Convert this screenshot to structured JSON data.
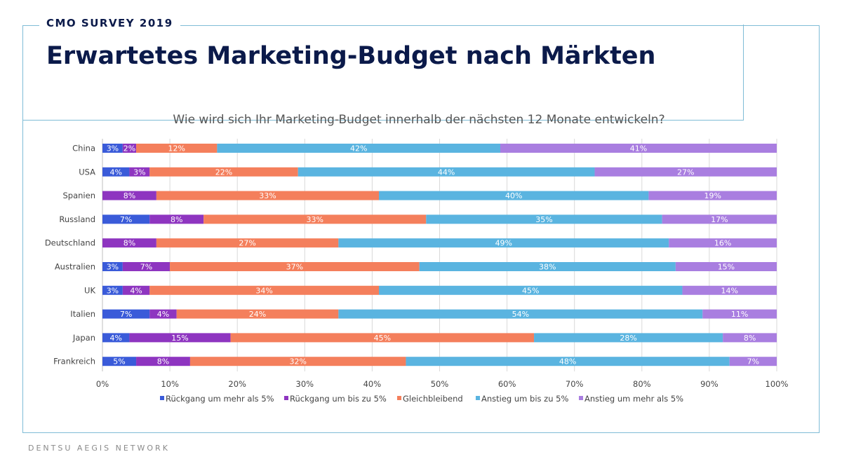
{
  "header": {
    "survey_label": "CMO SURVEY 2019",
    "title": "Erwartetes Marketing-Budget nach Märkten"
  },
  "footer": {
    "brand": "DENTSU AEGIS NETWORK"
  },
  "chart_data": {
    "type": "bar",
    "orientation": "horizontal",
    "stacked": true,
    "title": "Wie wird sich Ihr Marketing-Budget innerhalb der nächsten 12 Monate entwickeln?",
    "xlabel": "",
    "ylabel": "",
    "xlim": [
      0,
      100
    ],
    "x_ticks": [
      "0%",
      "10%",
      "20%",
      "30%",
      "40%",
      "50%",
      "60%",
      "70%",
      "80%",
      "90%",
      "100%"
    ],
    "grid": true,
    "legend_position": "bottom",
    "categories": [
      "China",
      "USA",
      "Spanien",
      "Russland",
      "Deutschland",
      "Australien",
      "UK",
      "Italien",
      "Japan",
      "Frankreich"
    ],
    "series": [
      {
        "name": "Rückgang um mehr als 5%",
        "color": "#3a5bd9",
        "values": [
          3,
          4,
          0,
          7,
          0,
          3,
          3,
          7,
          4,
          5
        ],
        "labels": [
          "3%",
          "4%",
          "",
          "7%",
          "",
          "3%",
          "3%",
          "7%",
          "4%",
          "5%"
        ]
      },
      {
        "name": "Rückgang um bis zu 5%",
        "color": "#8e35c0",
        "values": [
          2,
          3,
          8,
          8,
          8,
          7,
          4,
          4,
          15,
          8
        ],
        "labels": [
          "2%",
          "3%",
          "8%",
          "8%",
          "8%",
          "7%",
          "4%",
          "4%",
          "15%",
          "8%"
        ]
      },
      {
        "name": "Gleichbleibend",
        "color": "#f47f5c",
        "values": [
          12,
          22,
          33,
          33,
          27,
          37,
          34,
          24,
          45,
          32
        ],
        "labels": [
          "12%",
          "22%",
          "33%",
          "33%",
          "27%",
          "37%",
          "34%",
          "24%",
          "45%",
          "32%"
        ]
      },
      {
        "name": "Anstieg um bis zu 5%",
        "color": "#5ab4e0",
        "values": [
          42,
          44,
          40,
          35,
          49,
          38,
          45,
          54,
          28,
          48
        ],
        "labels": [
          "42%",
          "44%",
          "40%",
          "35%",
          "49%",
          "38%",
          "45%",
          "54%",
          "28%",
          "48%"
        ]
      },
      {
        "name": "Anstieg um mehr als 5%",
        "color": "#a97ee0",
        "values": [
          41,
          27,
          19,
          17,
          16,
          15,
          14,
          11,
          8,
          7
        ],
        "labels": [
          "41%",
          "27%",
          "19%",
          "17%",
          "16%",
          "15%",
          "14%",
          "11%",
          "8%",
          "7%"
        ]
      }
    ]
  }
}
